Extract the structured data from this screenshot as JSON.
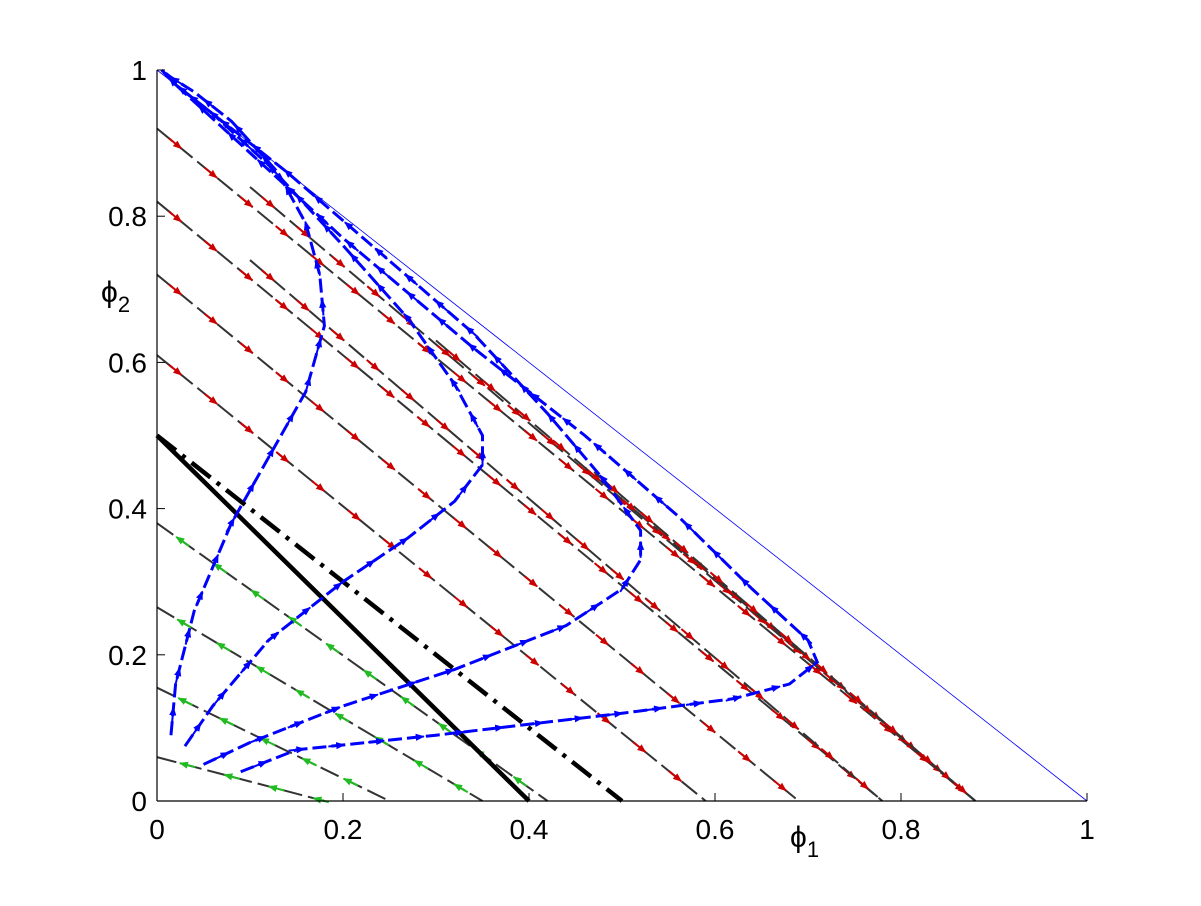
{
  "chart_data": {
    "type": "line",
    "title": "",
    "xlabel": {
      "base": "ϕ",
      "sub": "1"
    },
    "ylabel": {
      "base": "ϕ",
      "sub": "2"
    },
    "xlim": [
      0,
      1
    ],
    "ylim": [
      0,
      1
    ],
    "xticks": [
      "0",
      "0.2",
      "0.4",
      "0.6",
      "0.8",
      "1"
    ],
    "yticks": [
      "0",
      "0.2",
      "0.4",
      "0.6",
      "0.8",
      "1"
    ],
    "grid": false,
    "legend": "none",
    "colors": {
      "red": "#cc0000",
      "green": "#22bb22",
      "blue": "#0000ff",
      "black": "#000000",
      "dark": "#333333"
    },
    "boundary": {
      "x": [
        0,
        1
      ],
      "y": [
        1,
        0
      ]
    },
    "red_lines": [
      {
        "x": [
          0,
          0.88
        ],
        "y": [
          0.92,
          0
        ]
      },
      {
        "x": [
          0,
          0.78
        ],
        "y": [
          0.82,
          0
        ]
      },
      {
        "x": [
          0,
          0.69
        ],
        "y": [
          0.72,
          0
        ]
      },
      {
        "x": [
          0,
          0.59
        ],
        "y": [
          0.61,
          0
        ]
      },
      {
        "x": [
          0.1,
          0.88
        ],
        "y": [
          0.84,
          0
        ]
      },
      {
        "x": [
          0.1,
          0.78
        ],
        "y": [
          0.74,
          0
        ]
      },
      {
        "x": [
          0.3,
          0.88
        ],
        "y": [
          0.63,
          0
        ]
      },
      {
        "x": [
          0.47,
          0.88
        ],
        "y": [
          0.45,
          0
        ]
      }
    ],
    "green_lines": [
      {
        "x": [
          0,
          0.42
        ],
        "y": [
          0.38,
          0
        ]
      },
      {
        "x": [
          0,
          0.35
        ],
        "y": [
          0.265,
          0
        ]
      },
      {
        "x": [
          0,
          0.25
        ],
        "y": [
          0.155,
          0
        ]
      },
      {
        "x": [
          0,
          0.18
        ],
        "y": [
          0.06,
          0
        ]
      }
    ],
    "solid_line": {
      "x": [
        0,
        0.4
      ],
      "y": [
        0.5,
        0
      ]
    },
    "dashdot_line": {
      "x": [
        0,
        0.5
      ],
      "y": [
        0.5,
        0
      ]
    },
    "blue_curves": [
      {
        "x": [
          0.015,
          0.02,
          0.04,
          0.08,
          0.12,
          0.16,
          0.18,
          0.175,
          0.16,
          0.13,
          0.08,
          0.04,
          0.015,
          0.005
        ],
        "y": [
          0.09,
          0.16,
          0.26,
          0.38,
          0.47,
          0.56,
          0.65,
          0.72,
          0.79,
          0.86,
          0.93,
          0.97,
          0.99,
          1.0
        ]
      },
      {
        "x": [
          0.03,
          0.06,
          0.12,
          0.2,
          0.27,
          0.32,
          0.35,
          0.35,
          0.32,
          0.27,
          0.2,
          0.12,
          0.06,
          0.02,
          0.005
        ],
        "y": [
          0.075,
          0.13,
          0.22,
          0.3,
          0.36,
          0.41,
          0.46,
          0.5,
          0.57,
          0.66,
          0.76,
          0.87,
          0.94,
          0.98,
          1.0
        ]
      },
      {
        "x": [
          0.05,
          0.1,
          0.2,
          0.32,
          0.44,
          0.5,
          0.52,
          0.52,
          0.48,
          0.42,
          0.34,
          0.24,
          0.14,
          0.06,
          0.02,
          0.005
        ],
        "y": [
          0.05,
          0.08,
          0.13,
          0.18,
          0.24,
          0.29,
          0.33,
          0.37,
          0.44,
          0.53,
          0.64,
          0.75,
          0.86,
          0.94,
          0.98,
          1.0
        ]
      },
      {
        "x": [
          0.09,
          0.15,
          0.3,
          0.5,
          0.62,
          0.68,
          0.71,
          0.7,
          0.64,
          0.56,
          0.46,
          0.34,
          0.2,
          0.08,
          0.02,
          0.005
        ],
        "y": [
          0.04,
          0.07,
          0.09,
          0.12,
          0.14,
          0.16,
          0.19,
          0.22,
          0.29,
          0.39,
          0.5,
          0.62,
          0.77,
          0.91,
          0.98,
          1.0
        ]
      }
    ]
  }
}
